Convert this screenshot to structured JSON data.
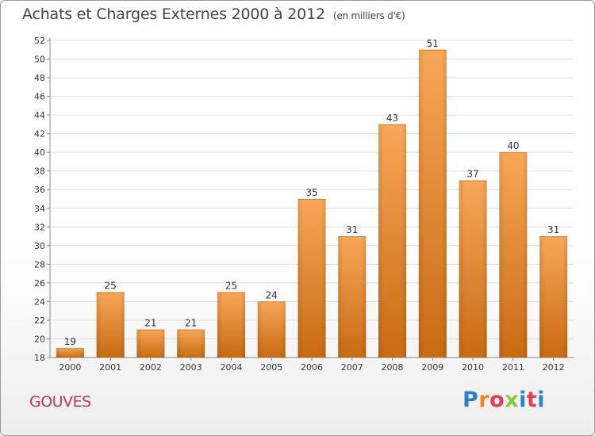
{
  "title": "Achats et Charges Externes 2000 à 2012",
  "unit": "(en milliers d'€)",
  "commune": "GOUVES",
  "logo": {
    "text": "Proxiti",
    "letter_colors": [
      "#2f7fc6",
      "#f08a1c",
      "#e83c55",
      "#8cc63f",
      "#2f7fc6",
      "#e83c55",
      "#2f7fc6"
    ]
  },
  "colors": {
    "bar_top": "#f7a758",
    "bar_bottom": "#c86b12",
    "grid": "#dcdcdc",
    "axis": "#888888",
    "text": "#333333"
  },
  "chart_data": {
    "type": "bar",
    "categories": [
      "2000",
      "2001",
      "2002",
      "2003",
      "2004",
      "2005",
      "2006",
      "2007",
      "2008",
      "2009",
      "2010",
      "2011",
      "2012"
    ],
    "values": [
      19,
      25,
      21,
      21,
      25,
      24,
      35,
      31,
      43,
      51,
      37,
      40,
      31
    ],
    "ylim": [
      18,
      52
    ],
    "ytick_step": 2,
    "grid": true
  }
}
